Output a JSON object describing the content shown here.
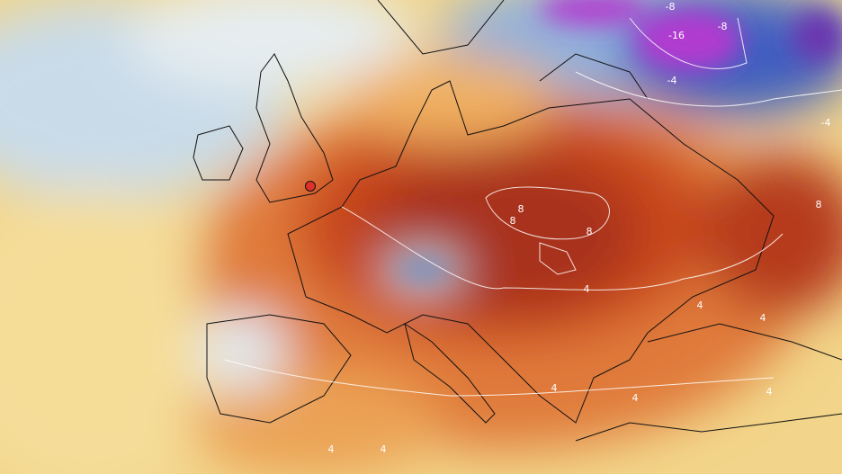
{
  "map": {
    "contour_labels": [
      "-8",
      "-16",
      "-8",
      "-4",
      "-4",
      "8",
      "8",
      "8",
      "8",
      "4",
      "4",
      "4",
      "4",
      "4",
      "4",
      "4",
      "4"
    ]
  }
}
